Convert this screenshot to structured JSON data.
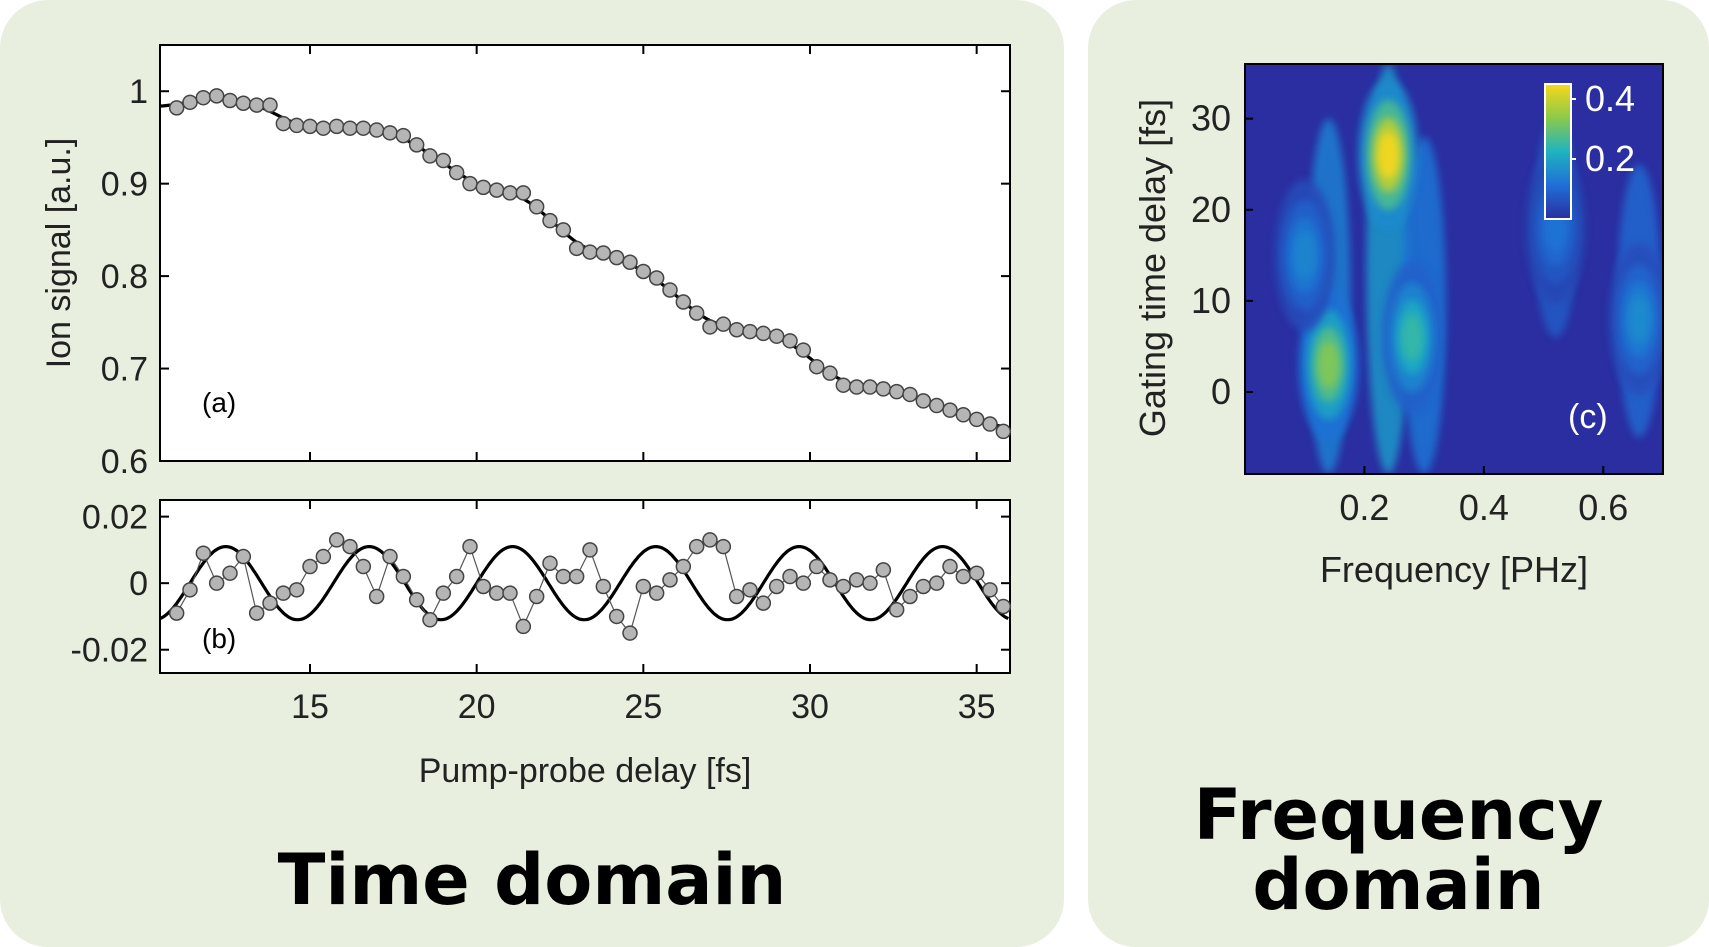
{
  "panels": {
    "left_title": "Time domain",
    "right_title_line1": "Frequency",
    "right_title_line2": "domain"
  },
  "colors": {
    "panel_background": "#e8efdf",
    "marker_fill": "#b5b5b5",
    "fit_line": "#000000",
    "heatmap_low": "#2a2ea0",
    "heatmap_high": "#f2d71c"
  },
  "chart_data": [
    {
      "id": "a",
      "type": "scatter",
      "panel_label": "(a)",
      "ylabel": "Ion signal [a.u.]",
      "xlabel": "",
      "xlim": [
        10.5,
        36
      ],
      "ylim": [
        0.6,
        1.05
      ],
      "yticks": [
        0.6,
        0.7,
        0.8,
        0.9,
        1
      ],
      "ytick_labels": [
        "0.6",
        "0.7",
        "0.8",
        "0.9",
        "1"
      ],
      "xticks": [
        15,
        20,
        25,
        30,
        35
      ],
      "series": [
        {
          "kind": "markers",
          "x": [
            11.0,
            11.4,
            11.8,
            12.2,
            12.6,
            13.0,
            13.4,
            13.8,
            14.2,
            14.6,
            15.0,
            15.4,
            15.8,
            16.2,
            16.6,
            17.0,
            17.4,
            17.8,
            18.2,
            18.6,
            19.0,
            19.4,
            19.8,
            20.2,
            20.6,
            21.0,
            21.4,
            21.8,
            22.2,
            22.6,
            23.0,
            23.4,
            23.8,
            24.2,
            24.6,
            25.0,
            25.4,
            25.8,
            26.2,
            26.6,
            27.0,
            27.4,
            27.8,
            28.2,
            28.6,
            29.0,
            29.4,
            29.8,
            30.2,
            30.6,
            31.0,
            31.4,
            31.8,
            32.2,
            32.6,
            33.0,
            33.4,
            33.8,
            34.2,
            34.6,
            35.0,
            35.4,
            35.8
          ],
          "y": [
            0.982,
            0.988,
            0.993,
            0.995,
            0.99,
            0.987,
            0.985,
            0.985,
            0.965,
            0.963,
            0.962,
            0.96,
            0.962,
            0.96,
            0.96,
            0.958,
            0.955,
            0.952,
            0.942,
            0.93,
            0.925,
            0.912,
            0.9,
            0.896,
            0.893,
            0.89,
            0.89,
            0.875,
            0.86,
            0.85,
            0.83,
            0.826,
            0.825,
            0.82,
            0.815,
            0.805,
            0.798,
            0.785,
            0.772,
            0.76,
            0.745,
            0.748,
            0.742,
            0.74,
            0.738,
            0.735,
            0.73,
            0.72,
            0.702,
            0.695,
            0.682,
            0.68,
            0.68,
            0.678,
            0.675,
            0.672,
            0.665,
            0.66,
            0.655,
            0.65,
            0.645,
            0.64,
            0.632
          ]
        },
        {
          "kind": "fit_line",
          "note": "smooth fit"
        }
      ]
    },
    {
      "id": "b",
      "type": "line",
      "panel_label": "(b)",
      "xlabel": "Pump-probe delay [fs]",
      "ylabel": "",
      "xlim": [
        10.5,
        36
      ],
      "ylim": [
        -0.027,
        0.025
      ],
      "yticks": [
        -0.02,
        0,
        0.02
      ],
      "ytick_labels": [
        "-0.02",
        "0",
        "0.02"
      ],
      "xticks": [
        15,
        20,
        25,
        30,
        35
      ],
      "xtick_labels": [
        "15",
        "20",
        "25",
        "30",
        "35"
      ],
      "series": [
        {
          "kind": "markers_connected",
          "x": [
            11.0,
            11.4,
            11.8,
            12.2,
            12.6,
            13.0,
            13.4,
            13.8,
            14.2,
            14.6,
            15.0,
            15.4,
            15.8,
            16.2,
            16.6,
            17.0,
            17.4,
            17.8,
            18.2,
            18.6,
            19.0,
            19.4,
            19.8,
            20.2,
            20.6,
            21.0,
            21.4,
            21.8,
            22.2,
            22.6,
            23.0,
            23.4,
            23.8,
            24.2,
            24.6,
            25.0,
            25.4,
            25.8,
            26.2,
            26.6,
            27.0,
            27.4,
            27.8,
            28.2,
            28.6,
            29.0,
            29.4,
            29.8,
            30.2,
            30.6,
            31.0,
            31.4,
            31.8,
            32.2,
            32.6,
            33.0,
            33.4,
            33.8,
            34.2,
            34.6,
            35.0,
            35.4,
            35.8
          ],
          "y": [
            -0.009,
            -0.002,
            0.009,
            0.0,
            0.003,
            0.008,
            -0.009,
            -0.006,
            -0.003,
            -0.002,
            0.005,
            0.008,
            0.013,
            0.011,
            0.005,
            -0.004,
            0.008,
            0.002,
            -0.005,
            -0.011,
            -0.003,
            0.002,
            0.011,
            -0.001,
            -0.003,
            -0.003,
            -0.013,
            -0.004,
            0.006,
            0.002,
            0.002,
            0.01,
            -0.001,
            -0.01,
            -0.015,
            -0.001,
            -0.003,
            0.001,
            0.005,
            0.011,
            0.013,
            0.011,
            -0.004,
            -0.002,
            -0.006,
            -0.001,
            0.002,
            0.0,
            0.005,
            0.001,
            -0.001,
            0.001,
            0.0,
            0.004,
            -0.008,
            -0.004,
            -0.001,
            0.0,
            0.005,
            0.002,
            0.003,
            -0.002,
            -0.007
          ]
        },
        {
          "kind": "sine_fit",
          "amplitude": 0.011,
          "period_fs": 4.3
        }
      ]
    },
    {
      "id": "c",
      "type": "heatmap",
      "panel_label": "(c)",
      "xlabel": "Frequency [PHz]",
      "ylabel": "Gating time delay [fs]",
      "xlim": [
        0.0,
        0.7
      ],
      "ylim": [
        -9,
        36
      ],
      "xticks": [
        0.2,
        0.4,
        0.6
      ],
      "xtick_labels": [
        "0.2",
        "0.4",
        "0.6"
      ],
      "yticks": [
        0,
        10,
        20,
        30
      ],
      "ytick_labels": [
        "0",
        "10",
        "20",
        "30"
      ],
      "colorbar": {
        "ticks": [
          0.2,
          0.4
        ],
        "tick_labels": [
          "0.2",
          "0.4"
        ],
        "range": [
          0,
          0.45
        ]
      },
      "peaks": [
        {
          "f": 0.24,
          "t": 26,
          "value": 0.45
        },
        {
          "f": 0.14,
          "t": 3,
          "value": 0.33
        },
        {
          "f": 0.28,
          "t": 6,
          "value": 0.25
        },
        {
          "f": 0.1,
          "t": 15,
          "value": 0.15
        },
        {
          "f": 0.52,
          "t": 18,
          "value": 0.12
        },
        {
          "f": 0.66,
          "t": 8,
          "value": 0.16
        }
      ]
    }
  ]
}
